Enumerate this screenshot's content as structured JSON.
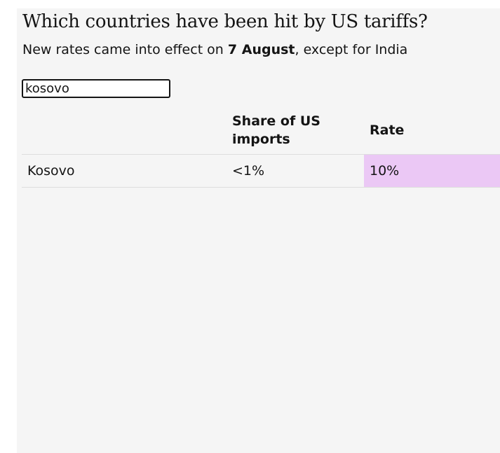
{
  "header": {
    "title": "Which countries have been hit by US tariffs?",
    "subtitle": {
      "before": "New rates came into effect on",
      "date": "7 August",
      "after": ", except for India"
    }
  },
  "search": {
    "value": "kosovo"
  },
  "table": {
    "columns": [
      "Share of US imports",
      "Rate"
    ],
    "rows": [
      [
        "Kosovo",
        "<1%",
        "10%"
      ]
    ],
    "rate_color": "#ebc8f5"
  }
}
